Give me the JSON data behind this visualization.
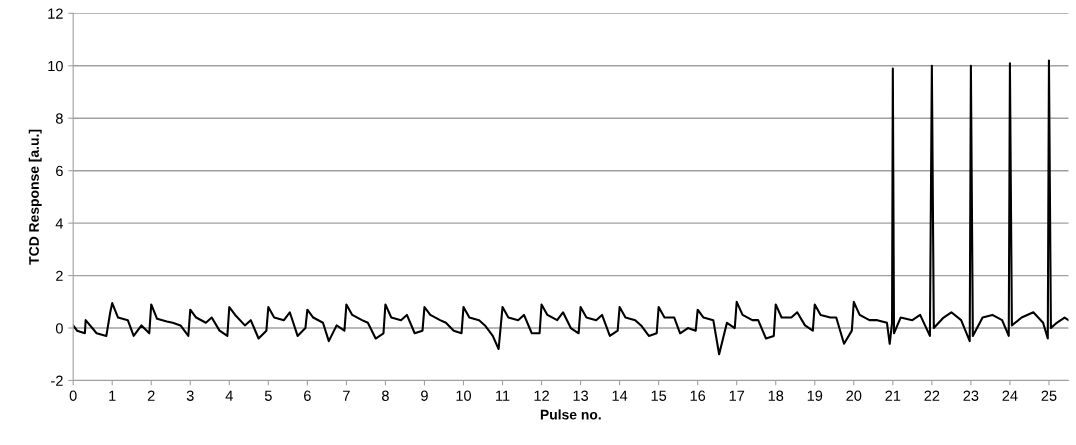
{
  "chart_data": {
    "type": "line",
    "xlabel": "Pulse no.",
    "ylabel": "TCD Response [a.u.]",
    "xlim": [
      0,
      25.5
    ],
    "xticks": [
      0,
      1,
      2,
      3,
      4,
      5,
      6,
      7,
      8,
      9,
      10,
      11,
      12,
      13,
      14,
      15,
      16,
      17,
      18,
      19,
      20,
      21,
      22,
      23,
      24,
      25
    ],
    "ylim": [
      -2,
      12
    ],
    "yticks": [
      -2,
      0,
      2,
      4,
      6,
      8,
      10,
      12
    ],
    "grid": "y",
    "legend": false,
    "marker": "none",
    "line_style": "solid",
    "series": [
      {
        "color": "#000000",
        "x": [
          0,
          0.1,
          0.3,
          0.32,
          0.6,
          0.85,
          0.95,
          1.0,
          1.15,
          1.4,
          1.55,
          1.75,
          1.95,
          2.0,
          2.15,
          2.4,
          2.55,
          2.75,
          2.95,
          3.0,
          3.15,
          3.4,
          3.55,
          3.75,
          3.95,
          4.0,
          4.15,
          4.4,
          4.55,
          4.75,
          4.95,
          5.0,
          5.15,
          5.4,
          5.55,
          5.75,
          5.95,
          6.0,
          6.15,
          6.4,
          6.55,
          6.75,
          6.95,
          7.0,
          7.15,
          7.4,
          7.55,
          7.75,
          7.95,
          8.0,
          8.15,
          8.4,
          8.55,
          8.75,
          8.95,
          9.0,
          9.15,
          9.4,
          9.55,
          9.75,
          9.95,
          10.0,
          10.15,
          10.4,
          10.55,
          10.75,
          10.9,
          11.0,
          11.15,
          11.4,
          11.55,
          11.75,
          11.95,
          12.0,
          12.15,
          12.4,
          12.55,
          12.75,
          12.95,
          13.0,
          13.15,
          13.4,
          13.55,
          13.75,
          13.95,
          14.0,
          14.15,
          14.4,
          14.55,
          14.75,
          14.95,
          15.0,
          15.15,
          15.4,
          15.55,
          15.75,
          15.95,
          16.0,
          16.15,
          16.4,
          16.55,
          16.75,
          16.95,
          17.0,
          17.15,
          17.4,
          17.55,
          17.75,
          17.95,
          18.0,
          18.15,
          18.4,
          18.55,
          18.75,
          18.95,
          19.0,
          19.15,
          19.4,
          19.55,
          19.75,
          19.95,
          20.0,
          20.15,
          20.4,
          20.6,
          20.85,
          20.92,
          20.98,
          21.0,
          21.03,
          21.2,
          21.5,
          21.7,
          21.95,
          22.0,
          22.05,
          22.3,
          22.5,
          22.75,
          22.97,
          23.0,
          23.05,
          23.3,
          23.55,
          23.8,
          23.97,
          24.0,
          24.05,
          24.3,
          24.6,
          24.85,
          24.97,
          25.0,
          25.05,
          25.2,
          25.4,
          25.5
        ],
        "values": [
          0.1,
          -0.1,
          -0.2,
          0.3,
          -0.2,
          -0.3,
          0.6,
          0.95,
          0.4,
          0.3,
          -0.3,
          0.1,
          -0.2,
          0.9,
          0.35,
          0.25,
          0.2,
          0.1,
          -0.3,
          0.7,
          0.4,
          0.2,
          0.4,
          -0.1,
          -0.3,
          0.8,
          0.5,
          0.1,
          0.3,
          -0.4,
          -0.1,
          0.8,
          0.4,
          0.3,
          0.6,
          -0.3,
          0.0,
          0.7,
          0.4,
          0.2,
          -0.5,
          0.1,
          -0.1,
          0.9,
          0.5,
          0.3,
          0.2,
          -0.4,
          -0.2,
          0.9,
          0.4,
          0.3,
          0.5,
          -0.2,
          -0.1,
          0.8,
          0.5,
          0.3,
          0.2,
          -0.1,
          -0.2,
          0.8,
          0.4,
          0.3,
          0.1,
          -0.3,
          -0.8,
          0.8,
          0.4,
          0.3,
          0.5,
          -0.2,
          -0.2,
          0.9,
          0.5,
          0.3,
          0.6,
          0.0,
          -0.2,
          0.8,
          0.4,
          0.3,
          0.5,
          -0.3,
          -0.1,
          0.8,
          0.4,
          0.3,
          0.1,
          -0.3,
          -0.2,
          0.8,
          0.4,
          0.4,
          -0.2,
          0.0,
          -0.1,
          0.7,
          0.4,
          0.3,
          -1.0,
          0.2,
          0.0,
          1.0,
          0.5,
          0.3,
          0.3,
          -0.4,
          -0.3,
          0.9,
          0.4,
          0.4,
          0.6,
          0.1,
          -0.1,
          0.9,
          0.5,
          0.4,
          0.4,
          -0.6,
          -0.1,
          1.0,
          0.5,
          0.3,
          0.3,
          0.2,
          -0.6,
          0.2,
          9.9,
          -0.2,
          0.4,
          0.3,
          0.5,
          -0.3,
          10.0,
          0.0,
          0.4,
          0.6,
          0.3,
          -0.5,
          10.0,
          -0.3,
          0.4,
          0.5,
          0.3,
          -0.3,
          10.1,
          0.1,
          0.4,
          0.6,
          0.2,
          -0.4,
          10.2,
          0.0,
          0.2,
          0.4,
          0.3
        ]
      }
    ]
  }
}
